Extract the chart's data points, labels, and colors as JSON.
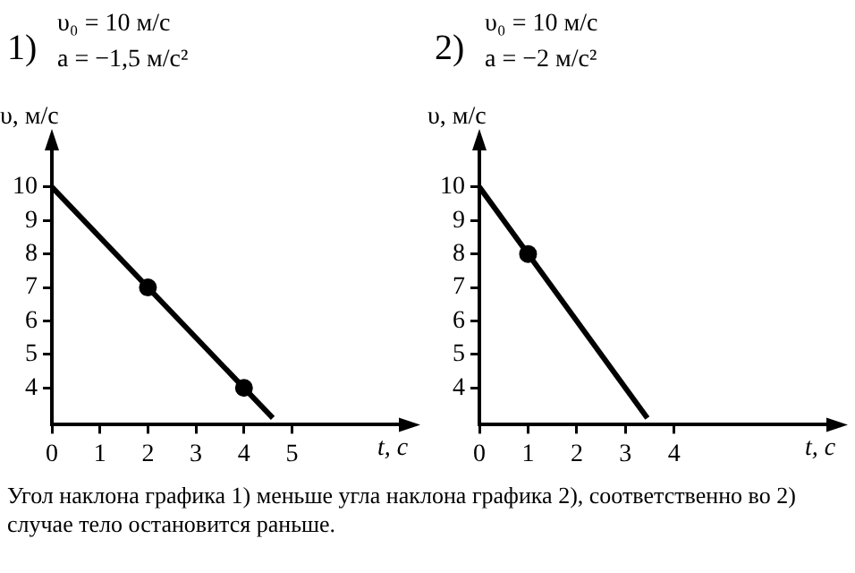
{
  "chart_data": [
    {
      "type": "line",
      "title": "1)",
      "annotations": [
        "υ₀ = 10 м/с",
        "a = −1,5 м/с²"
      ],
      "xlabel": "t, с",
      "ylabel": "υ, м/с",
      "series": [
        {
          "type": "line",
          "color": "#000000",
          "marker": "none",
          "x": [
            0,
            4.6
          ],
          "values": [
            10,
            3.1
          ]
        },
        {
          "type": "scatter",
          "color": "#000000",
          "marker": "circle",
          "x": [
            2,
            4
          ],
          "values": [
            7,
            4
          ]
        }
      ],
      "xlim": [
        0,
        7.3
      ],
      "xticks": [
        0,
        1,
        2,
        3,
        4,
        5
      ],
      "ylim": [
        2.9,
        11.2
      ],
      "yticks": [
        4,
        5,
        6,
        7,
        8,
        9,
        10
      ],
      "grid": false,
      "legend": false
    },
    {
      "type": "line",
      "title": "2)",
      "annotations": [
        "υ₀ = 10 м/с",
        "a = −2 м/с²"
      ],
      "xlabel": "t, с",
      "ylabel": "υ, м/с",
      "series": [
        {
          "type": "line",
          "color": "#000000",
          "marker": "none",
          "x": [
            0,
            3.45
          ],
          "values": [
            10,
            3.1
          ]
        },
        {
          "type": "scatter",
          "color": "#000000",
          "marker": "circle",
          "x": [
            1
          ],
          "values": [
            8
          ]
        }
      ],
      "xlim": [
        0,
        7.2
      ],
      "xticks": [
        0,
        1,
        2,
        3,
        4
      ],
      "ylim": [
        2.9,
        11.2
      ],
      "yticks": [
        4,
        5,
        6,
        7,
        8,
        9,
        10
      ],
      "grid": false,
      "legend": false
    },
    {
      "type": "other",
      "annotations": [
        "Угол наклона графика 1) меньше угла наклона графика 2), соответственно во 2) случае тело остановится раньше."
      ]
    }
  ]
}
